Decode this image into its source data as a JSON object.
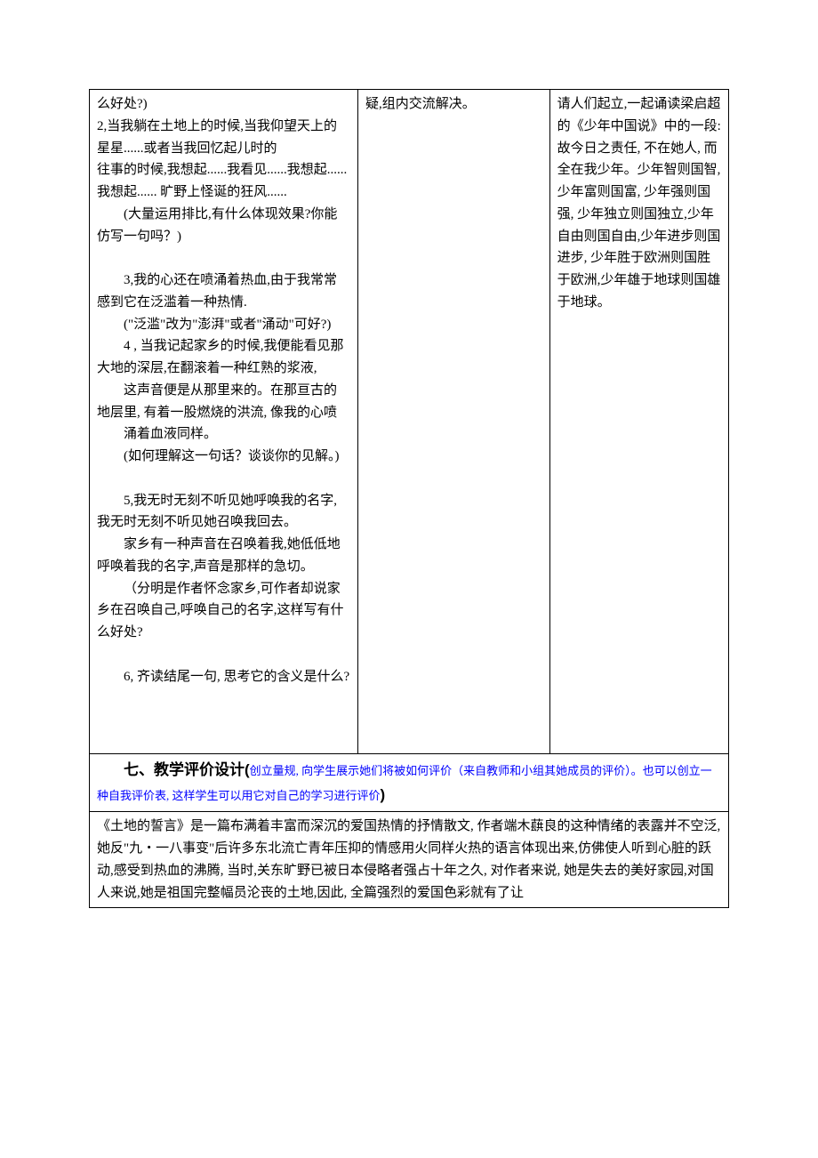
{
  "colors": {
    "text": "#000000",
    "hint": "#0000ff",
    "border": "#000000",
    "background": "#ffffff"
  },
  "typography": {
    "body_font": "SimSun",
    "heading_font": "SimHei",
    "body_size_pt": 11,
    "heading_size_pt": 13,
    "hint_size_pt": 10,
    "line_height": 1.65
  },
  "layout": {
    "columns": [
      "left",
      "mid",
      "right"
    ],
    "col_widths_pct": [
      42,
      30,
      28
    ]
  },
  "row1": {
    "left": {
      "l0": "么好处?)",
      "l1": "2,当我躺在土地上的时候,当我仰望天上的星星......或者当我回忆起儿时的",
      "l2": "  往事的时候,我想起......我看见......我想起...... 我想起...... 旷野上怪诞的狂风......",
      "l3": "(大量运用排比,有什么体现效果?你能仿写一句吗？)",
      "l4": "3,我的心还在喷涌着热血,由于我常常感到它在泛滥着一种热情.",
      "l5": "(\"泛滥\"改为\"澎湃\"或者\"涌动\"可好?)",
      "l6": "4 , 当我记起家乡的时候,我便能看见那大地的深层,在翻滚着一种红熟的浆液,",
      "l7": "这声音便是从那里来的。在那亘古的地层里, 有着一股燃烧的洪流, 像我的心喷",
      "l8": "涌着血液同样。",
      "l9": "(如何理解这一句话？谈谈你的见解。)",
      "l10": "5,我无时无刻不听见她呼唤我的名字,我无时无刻不听见她召唤我回去。",
      "l11": "家乡有一种声音在召唤着我,她低低地呼唤着我的名字,声音是那样的急切。",
      "l12": "（分明是作者怀念家乡,可作者却说家乡在召唤自己,呼唤自己的名字,这样写有什么好处?",
      "l13": "6, 齐读结尾一句, 思考它的含义是什么?"
    },
    "mid": {
      "m0": "疑,组内交流解决。"
    },
    "right": {
      "r0": "请人们起立,一起诵读梁启超的《少年中国说》中的一段:",
      "r1": "故今日之责任, 不在她人, 而全在我少年。少年智则国智, 少年富则国富, 少年强则国强, 少年独立则国独立,少年自由则国自由,少年进步则国进步, 少年胜于欧洲则国胜于欧洲,少年雄于地球则国雄于地球。"
    }
  },
  "section_heading": {
    "label": "七、教学评价设计(",
    "hint": "创立量规, 向学生展示她们将被如何评价（来自教师和小组其她成员的评价）。也可以创立一种自我评价表, 这样学生可以用它对自己的学习进行评价",
    "close": ")"
  },
  "row3": {
    "text": "《土地的誓言》是一篇布满着丰富而深沉的爱国热情的抒情散文, 作者端木蕻良的这种情绪的表露并不空泛, 她反\"九・一八事变\"后许多东北流亡青年压抑的情感用火同样火热的语言体现出来,仿佛使人听到心脏的跃动,感受到热血的沸腾, 当时,关东旷野已被日本侵略者强占十年之久, 对作者来说, 她是失去的美好家园,对国人来说,她是祖国完整幅员沦丧的土地,因此,  全篇强烈的爱国色彩就有了让"
  }
}
